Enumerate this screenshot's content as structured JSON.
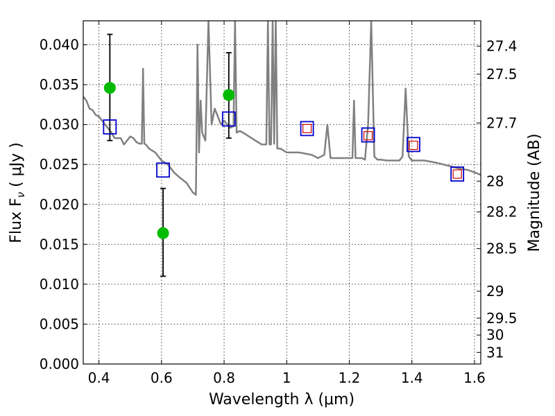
{
  "chart_data": {
    "type": "scatter",
    "xlabel": "Wavelength  λ (μm)",
    "ylabel": "Flux  F",
    "ylabel_sub": "ν",
    "ylabel_units": "  ( μJy )",
    "ylabel_right": "Magnitude (AB)",
    "xlim": [
      0.35,
      1.62
    ],
    "ylim": [
      0.0,
      0.043
    ],
    "grid": true,
    "x_ticks": [
      0.4,
      0.6,
      0.8,
      1.0,
      1.2,
      1.4,
      1.6
    ],
    "x_tick_labels": [
      "0.4",
      "0.6",
      "0.8",
      "1",
      "1.2",
      "1.4",
      "1.6"
    ],
    "y_ticks": [
      0.0,
      0.005,
      0.01,
      0.015,
      0.02,
      0.025,
      0.03,
      0.035,
      0.04
    ],
    "y_tick_labels": [
      "0.000",
      "0.005",
      "0.010",
      "0.015",
      "0.020",
      "0.025",
      "0.030",
      "0.035",
      "0.040"
    ],
    "right_axis_ticks": [
      {
        "flux": 0.03981,
        "label": "27.4"
      },
      {
        "flux": 0.03631,
        "label": "27.5"
      },
      {
        "flux": 0.0302,
        "label": "27.7"
      },
      {
        "flux": 0.02291,
        "label": "28"
      },
      {
        "flux": 0.01905,
        "label": "28.2"
      },
      {
        "flux": 0.01445,
        "label": "28.5"
      },
      {
        "flux": 0.00912,
        "label": "29"
      },
      {
        "flux": 0.00575,
        "label": "29.5"
      },
      {
        "flux": 0.00363,
        "label": "30"
      },
      {
        "flux": 0.00145,
        "label": "31"
      }
    ],
    "series": [
      {
        "kind": "spectrum",
        "color": "#808080",
        "x": [
          0.35,
          0.36,
          0.37,
          0.38,
          0.39,
          0.4,
          0.41,
          0.42,
          0.43,
          0.44,
          0.45,
          0.46,
          0.47,
          0.48,
          0.49,
          0.5,
          0.51,
          0.52,
          0.53,
          0.537,
          0.541,
          0.545,
          0.55,
          0.56,
          0.58,
          0.6,
          0.62,
          0.64,
          0.66,
          0.68,
          0.7,
          0.71,
          0.715,
          0.72,
          0.725,
          0.73,
          0.74,
          0.75,
          0.76,
          0.77,
          0.78,
          0.79,
          0.8,
          0.81,
          0.82,
          0.83,
          0.835,
          0.84,
          0.85,
          0.86,
          0.88,
          0.9,
          0.92,
          0.935,
          0.94,
          0.945,
          0.95,
          0.955,
          0.96,
          0.965,
          0.97,
          0.98,
          1.0,
          1.04,
          1.08,
          1.1,
          1.12,
          1.13,
          1.14,
          1.16,
          1.2,
          1.21,
          1.215,
          1.22,
          1.24,
          1.25,
          1.26,
          1.27,
          1.28,
          1.29,
          1.3,
          1.32,
          1.34,
          1.36,
          1.37,
          1.38,
          1.39,
          1.4,
          1.44,
          1.48,
          1.5,
          1.52,
          1.55,
          1.58,
          1.6,
          1.62
        ],
        "y": [
          0.0335,
          0.033,
          0.032,
          0.0318,
          0.0312,
          0.031,
          0.0305,
          0.03,
          0.0295,
          0.029,
          0.0283,
          0.0283,
          0.0283,
          0.0275,
          0.028,
          0.0285,
          0.0283,
          0.0278,
          0.0276,
          0.0276,
          0.037,
          0.0276,
          0.0275,
          0.027,
          0.0265,
          0.0255,
          0.025,
          0.024,
          0.0233,
          0.0227,
          0.0215,
          0.0212,
          0.04,
          0.0265,
          0.033,
          0.029,
          0.028,
          0.043,
          0.03,
          0.032,
          0.031,
          0.03,
          0.0305,
          0.03,
          0.0296,
          0.0298,
          0.043,
          0.029,
          0.0292,
          0.029,
          0.0285,
          0.028,
          0.0275,
          0.0275,
          0.043,
          0.0275,
          0.0275,
          0.043,
          0.0276,
          0.043,
          0.027,
          0.027,
          0.0265,
          0.0265,
          0.0262,
          0.0258,
          0.0262,
          0.03,
          0.0258,
          0.0258,
          0.0258,
          0.0258,
          0.033,
          0.0258,
          0.0258,
          0.0256,
          0.03,
          0.043,
          0.026,
          0.0256,
          0.0256,
          0.0255,
          0.0255,
          0.0255,
          0.026,
          0.0345,
          0.026,
          0.0255,
          0.0255,
          0.0252,
          0.025,
          0.0248,
          0.0245,
          0.0243,
          0.024,
          0.0237
        ]
      },
      {
        "kind": "observed",
        "marker": "circle",
        "color": "#00bb00",
        "x": [
          0.435,
          0.605,
          0.815
        ],
        "y": [
          0.0346,
          0.0164,
          0.0337
        ],
        "err_low": [
          0.028,
          0.011,
          0.0283
        ],
        "err_high": [
          0.0413,
          0.022,
          0.039
        ]
      },
      {
        "kind": "model",
        "marker": "square",
        "color": "#0000cc",
        "x": [
          0.435,
          0.605,
          0.815,
          1.065,
          1.26,
          1.405,
          1.545
        ],
        "y": [
          0.0297,
          0.0243,
          0.0307,
          0.0295,
          0.0287,
          0.0275,
          0.0238
        ]
      },
      {
        "kind": "model-inner",
        "marker": "square",
        "color": "#cc0000",
        "x": [
          1.065,
          1.26,
          1.405,
          1.545
        ],
        "y": [
          0.0295,
          0.0286,
          0.0274,
          0.0238
        ]
      }
    ]
  }
}
